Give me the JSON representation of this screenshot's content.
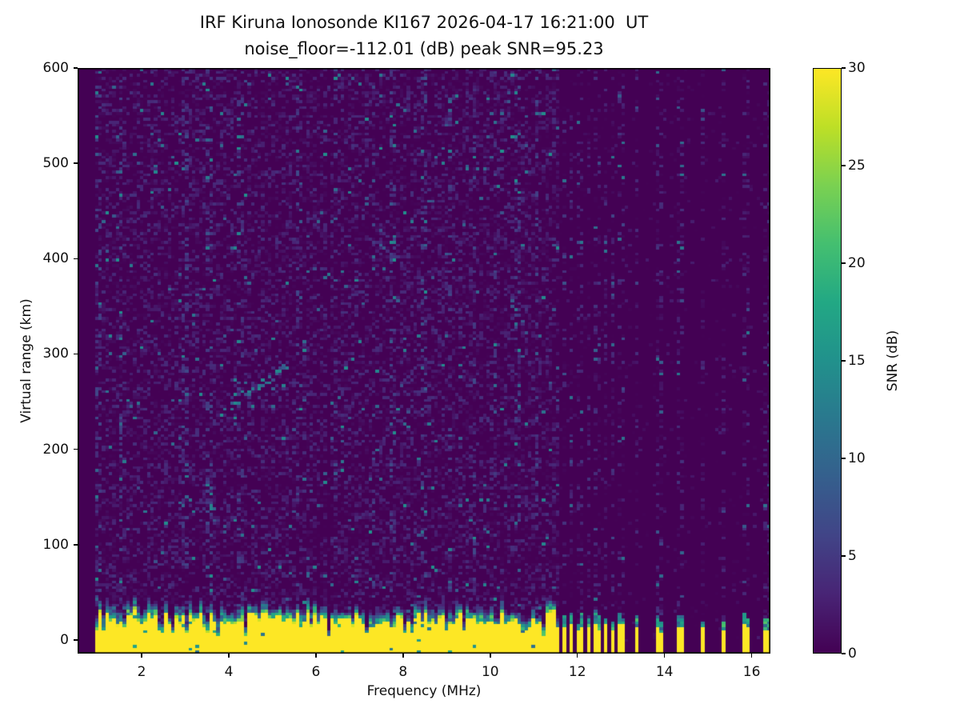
{
  "figure": {
    "title_line1": "IRF Kiruna Ionosonde KI167 2026-04-17 16:21:00  UT",
    "title_line2": "noise_floor=-112.01 (dB) peak SNR=95.23",
    "background_color": "#ffffff"
  },
  "chart_data": {
    "type": "heatmap",
    "title": "IRF Kiruna Ionosonde KI167 2026-04-17 16:21:00  UT",
    "subtitle": "noise_floor=-112.01 (dB) peak SNR=95.23",
    "xlabel": "Frequency (MHz)",
    "ylabel": "Virtual range (km)",
    "xlim": [
      0.53,
      16.43
    ],
    "ylim": [
      -14.3,
      600
    ],
    "x_ticks": [
      2,
      4,
      6,
      8,
      10,
      12,
      14,
      16
    ],
    "y_ticks": [
      0,
      100,
      200,
      300,
      400,
      500,
      600
    ],
    "grid": false,
    "colormap": "viridis",
    "colormap_stops": [
      "#440154",
      "#482475",
      "#414487",
      "#355f8d",
      "#2a788e",
      "#21918c",
      "#22a884",
      "#44bf70",
      "#7ad151",
      "#bddf26",
      "#fde725"
    ],
    "clim": [
      0,
      30
    ],
    "colorbar": {
      "label": "SNR (dB)",
      "ticks": [
        0,
        5,
        10,
        15,
        20,
        25,
        30
      ],
      "position": "right"
    },
    "annotations": {
      "noise_floor_db": -112.01,
      "peak_snr_db": 95.23,
      "station": "IRF Kiruna Ionosonde KI167",
      "timestamp_ut": "2026-04-17 16:21:00"
    },
    "content": {
      "seed": 167,
      "grid_bins": {
        "freq": 200,
        "range": 200
      },
      "tx_start_mhz": 0.95,
      "ground_clutter_band": {
        "freq_range_mhz": [
          0.95,
          11.55
        ],
        "saturated_value_db": 30,
        "saturated_top_km": [
          13,
          30
        ],
        "transition_top_extra_km": [
          7,
          20
        ],
        "notch_probability": 0.1
      },
      "sparse_columns_mhz": [
        11.68,
        11.84,
        12.06,
        12.25,
        12.45,
        12.63,
        12.82,
        13.0,
        13.37,
        13.88,
        14.36,
        14.86,
        15.37,
        15.88,
        16.36
      ],
      "sparse_column_top_km": [
        8,
        18
      ],
      "rfi_stripes_mhz": [
        1.02,
        1.5,
        2.98,
        3.55,
        4.28,
        5.57,
        6.45,
        7.33,
        7.77,
        8.47,
        9.06,
        9.62,
        10.12,
        10.63,
        11.07
      ],
      "dropout_columns_mhz": [
        6.28,
        7.18
      ],
      "echo_trace": {
        "from_mhz_km": [
          3.88,
          240
        ],
        "to_mhz_km": [
          5.38,
          288
        ],
        "snr_db": [
          6,
          15
        ]
      },
      "noise_speckle": {
        "density_below_11_55": 0.5,
        "density_above_11_55": 0.045,
        "value_db_range": [
          0,
          7
        ],
        "teal_speck_db_range": [
          7,
          15
        ]
      }
    }
  }
}
